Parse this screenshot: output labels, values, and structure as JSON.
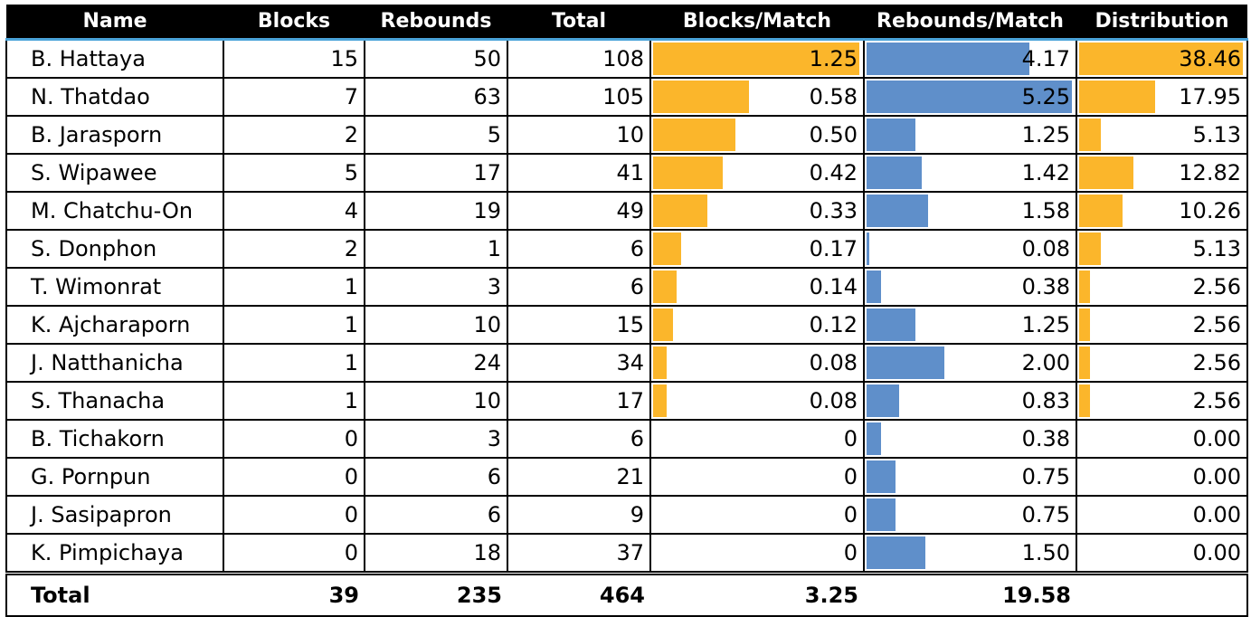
{
  "table": {
    "headers": [
      "Name",
      "Blocks",
      "Rebounds",
      "Total",
      "Blocks/Match",
      "Rebounds/Match",
      "Distribution"
    ],
    "rows": [
      {
        "name": "B. Hattaya",
        "blocks": "15",
        "rebounds": "50",
        "total": "108",
        "blocks_per_match": "1.25",
        "rebounds_per_match": "4.17",
        "distribution": "38.46"
      },
      {
        "name": "N. Thatdao",
        "blocks": "7",
        "rebounds": "63",
        "total": "105",
        "blocks_per_match": "0.58",
        "rebounds_per_match": "5.25",
        "distribution": "17.95"
      },
      {
        "name": "B. Jarasporn",
        "blocks": "2",
        "rebounds": "5",
        "total": "10",
        "blocks_per_match": "0.50",
        "rebounds_per_match": "1.25",
        "distribution": "5.13"
      },
      {
        "name": "S. Wipawee",
        "blocks": "5",
        "rebounds": "17",
        "total": "41",
        "blocks_per_match": "0.42",
        "rebounds_per_match": "1.42",
        "distribution": "12.82"
      },
      {
        "name": "M. Chatchu-On",
        "blocks": "4",
        "rebounds": "19",
        "total": "49",
        "blocks_per_match": "0.33",
        "rebounds_per_match": "1.58",
        "distribution": "10.26"
      },
      {
        "name": "S. Donphon",
        "blocks": "2",
        "rebounds": "1",
        "total": "6",
        "blocks_per_match": "0.17",
        "rebounds_per_match": "0.08",
        "distribution": "5.13"
      },
      {
        "name": "T. Wimonrat",
        "blocks": "1",
        "rebounds": "3",
        "total": "6",
        "blocks_per_match": "0.14",
        "rebounds_per_match": "0.38",
        "distribution": "2.56"
      },
      {
        "name": "K. Ajcharaporn",
        "blocks": "1",
        "rebounds": "10",
        "total": "15",
        "blocks_per_match": "0.12",
        "rebounds_per_match": "1.25",
        "distribution": "2.56"
      },
      {
        "name": "J. Natthanicha",
        "blocks": "1",
        "rebounds": "24",
        "total": "34",
        "blocks_per_match": "0.08",
        "rebounds_per_match": "2.00",
        "distribution": "2.56"
      },
      {
        "name": "S. Thanacha",
        "blocks": "1",
        "rebounds": "10",
        "total": "17",
        "blocks_per_match": "0.08",
        "rebounds_per_match": "0.83",
        "distribution": "2.56"
      },
      {
        "name": "B. Tichakorn",
        "blocks": "0",
        "rebounds": "3",
        "total": "6",
        "blocks_per_match": "0",
        "rebounds_per_match": "0.38",
        "distribution": "0.00"
      },
      {
        "name": "G. Pornpun",
        "blocks": "0",
        "rebounds": "6",
        "total": "21",
        "blocks_per_match": "0",
        "rebounds_per_match": "0.75",
        "distribution": "0.00"
      },
      {
        "name": "J. Sasipapron",
        "blocks": "0",
        "rebounds": "6",
        "total": "9",
        "blocks_per_match": "0",
        "rebounds_per_match": "0.75",
        "distribution": "0.00"
      },
      {
        "name": "K. Pimpichaya",
        "blocks": "0",
        "rebounds": "18",
        "total": "37",
        "blocks_per_match": "0",
        "rebounds_per_match": "1.50",
        "distribution": "0.00"
      }
    ],
    "totals": {
      "label": "Total",
      "blocks": "39",
      "rebounds": "235",
      "total": "464",
      "blocks_per_match": "3.25",
      "rebounds_per_match": "19.58",
      "distribution": ""
    }
  },
  "colors": {
    "blocks_bar": "#fbb62b",
    "rebounds_bar": "#5f8fca",
    "distribution_bar": "#fbb62b",
    "header_bg": "#000000",
    "header_text": "#ffffff",
    "header_underline": "#4aa3d9"
  }
}
